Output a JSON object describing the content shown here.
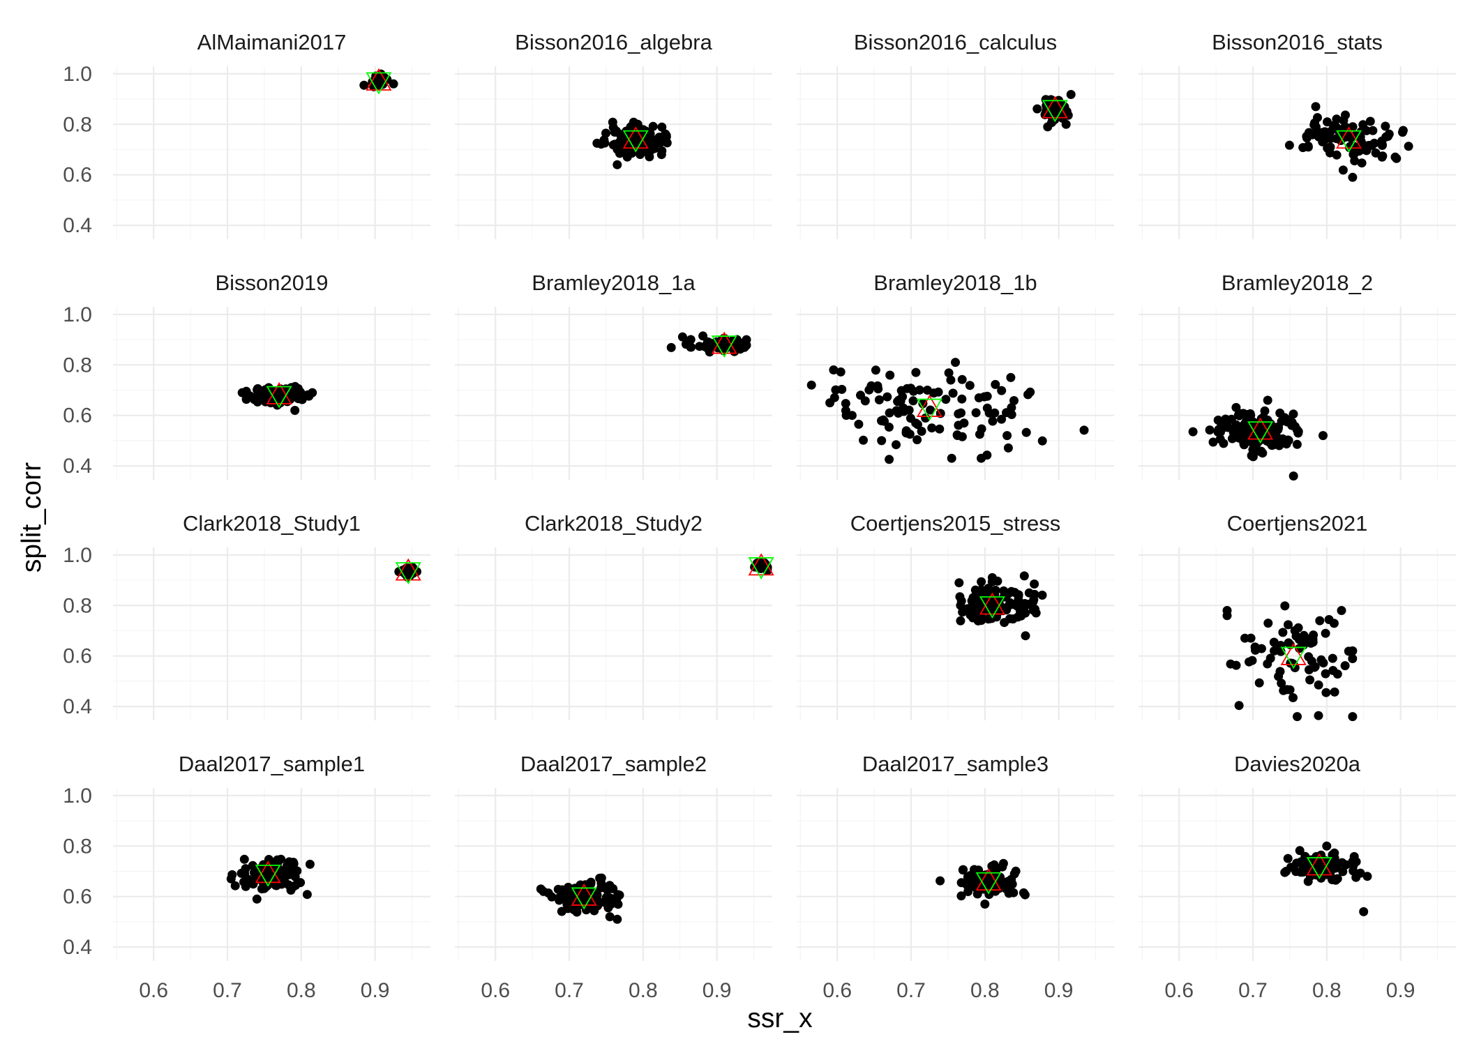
{
  "chart_data": {
    "type": "scatter",
    "facet_layout": {
      "rows": 4,
      "cols": 4
    },
    "xlabel": "ssr_x",
    "ylabel": "split_corr",
    "xlim": [
      0.545,
      0.975
    ],
    "ylim": [
      0.345,
      1.03
    ],
    "x_ticks": [
      0.6,
      0.7,
      0.8,
      0.9
    ],
    "x_tick_labels": [
      "0.6",
      "0.7",
      "0.8",
      "0.9"
    ],
    "y_ticks": [
      0.4,
      0.6,
      0.8,
      1.0
    ],
    "y_tick_labels": [
      "0.4",
      "0.6",
      "0.8",
      "1.0"
    ],
    "grid": true,
    "colors": {
      "points": "#000000",
      "triangle_up": "#ff0000",
      "triangle_down": "#00ff00"
    },
    "panels": [
      {
        "title": "AlMaimani2017",
        "cx": 0.905,
        "cy": 0.97,
        "sx": 0.006,
        "sy": 0.012,
        "n": 45,
        "outliers": [
          [
            0.885,
            0.955
          ],
          [
            0.925,
            0.96
          ]
        ]
      },
      {
        "title": "Bisson2016_algebra",
        "cx": 0.79,
        "cy": 0.74,
        "sx": 0.018,
        "sy": 0.03,
        "n": 110,
        "outliers": [
          [
            0.765,
            0.64
          ],
          [
            0.825,
            0.68
          ]
        ]
      },
      {
        "title": "Bisson2016_calculus",
        "cx": 0.895,
        "cy": 0.86,
        "sx": 0.009,
        "sy": 0.025,
        "n": 60,
        "outliers": [
          [
            0.885,
            0.79
          ],
          [
            0.91,
            0.8
          ]
        ]
      },
      {
        "title": "Bisson2016_stats",
        "cx": 0.83,
        "cy": 0.74,
        "sx": 0.03,
        "sy": 0.05,
        "n": 90,
        "outliers": [
          [
            0.785,
            0.87
          ],
          [
            0.835,
            0.59
          ],
          [
            0.875,
            0.67
          ],
          [
            0.775,
            0.71
          ]
        ]
      },
      {
        "title": "Bisson2019",
        "cx": 0.77,
        "cy": 0.68,
        "sx": 0.018,
        "sy": 0.018,
        "n": 90,
        "outliers": [
          [
            0.72,
            0.69
          ],
          [
            0.815,
            0.69
          ]
        ]
      },
      {
        "title": "Bramley2018_1a",
        "cx": 0.91,
        "cy": 0.88,
        "sx": 0.022,
        "sy": 0.012,
        "n": 75,
        "outliers": [
          [
            0.865,
            0.87
          ],
          [
            0.94,
            0.9
          ]
        ]
      },
      {
        "title": "Bramley2018_1b",
        "cx": 0.725,
        "cy": 0.63,
        "sx": 0.075,
        "sy": 0.075,
        "n": 100,
        "outliers": [
          [
            0.565,
            0.72
          ],
          [
            0.595,
            0.78
          ],
          [
            0.59,
            0.65
          ],
          [
            0.62,
            0.6
          ],
          [
            0.66,
            0.5
          ],
          [
            0.755,
            0.43
          ],
          [
            0.795,
            0.43
          ],
          [
            0.835,
            0.75
          ],
          [
            0.83,
            0.52
          ],
          [
            0.76,
            0.81
          ]
        ]
      },
      {
        "title": "Bramley2018_2",
        "cx": 0.71,
        "cy": 0.54,
        "sx": 0.028,
        "sy": 0.04,
        "n": 130,
        "outliers": [
          [
            0.755,
            0.36
          ],
          [
            0.795,
            0.52
          ],
          [
            0.72,
            0.66
          ]
        ]
      },
      {
        "title": "Clark2018_Study1",
        "cx": 0.945,
        "cy": 0.935,
        "sx": 0.005,
        "sy": 0.01,
        "n": 45,
        "outliers": []
      },
      {
        "title": "Clark2018_Study2",
        "cx": 0.96,
        "cy": 0.955,
        "sx": 0.004,
        "sy": 0.007,
        "n": 40,
        "outliers": []
      },
      {
        "title": "Coertjens2015_stress",
        "cx": 0.81,
        "cy": 0.8,
        "sx": 0.025,
        "sy": 0.04,
        "n": 120,
        "outliers": [
          [
            0.765,
            0.89
          ],
          [
            0.86,
            0.85
          ],
          [
            0.855,
            0.68
          ],
          [
            0.81,
            0.91
          ]
        ]
      },
      {
        "title": "Coertjens2021",
        "cx": 0.755,
        "cy": 0.6,
        "sx": 0.035,
        "sy": 0.08,
        "n": 70,
        "outliers": [
          [
            0.665,
            0.78
          ],
          [
            0.665,
            0.76
          ],
          [
            0.835,
            0.36
          ],
          [
            0.76,
            0.36
          ],
          [
            0.835,
            0.62
          ],
          [
            0.82,
            0.78
          ]
        ]
      },
      {
        "title": "Daal2017_sample1",
        "cx": 0.755,
        "cy": 0.69,
        "sx": 0.022,
        "sy": 0.03,
        "n": 100,
        "outliers": [
          [
            0.705,
            0.67
          ],
          [
            0.74,
            0.59
          ],
          [
            0.79,
            0.73
          ]
        ]
      },
      {
        "title": "Daal2017_sample2",
        "cx": 0.72,
        "cy": 0.6,
        "sx": 0.022,
        "sy": 0.03,
        "n": 110,
        "outliers": [
          [
            0.665,
            0.62
          ],
          [
            0.765,
            0.51
          ],
          [
            0.755,
            0.52
          ]
        ]
      },
      {
        "title": "Daal2017_sample3",
        "cx": 0.805,
        "cy": 0.66,
        "sx": 0.02,
        "sy": 0.03,
        "n": 90,
        "outliers": [
          [
            0.84,
            0.69
          ],
          [
            0.8,
            0.57
          ]
        ]
      },
      {
        "title": "Davies2020a",
        "cx": 0.79,
        "cy": 0.72,
        "sx": 0.022,
        "sy": 0.03,
        "n": 90,
        "outliers": [
          [
            0.85,
            0.54
          ],
          [
            0.855,
            0.68
          ],
          [
            0.745,
            0.7
          ],
          [
            0.8,
            0.8
          ]
        ]
      }
    ]
  }
}
